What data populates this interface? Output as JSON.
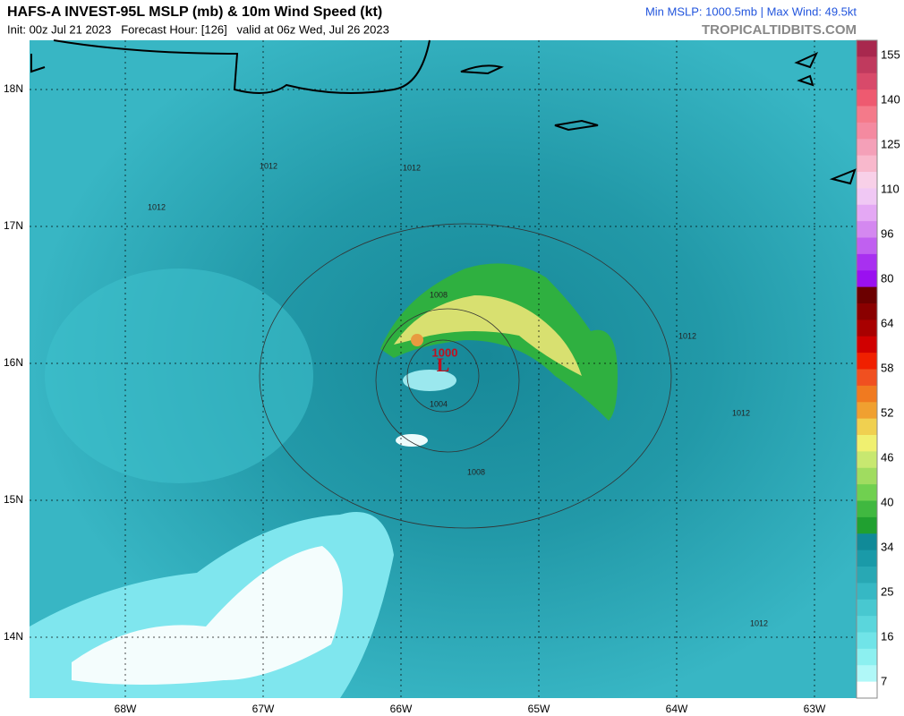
{
  "header": {
    "title": "HAFS-A INVEST-95L MSLP (mb) & 10m Wind Speed (kt)",
    "subtitle": "Init: 00z Jul 21 2023   Forecast Hour: [126]   valid at 06z Wed, Jul 26 2023",
    "stats": "Min MSLP: 1000.5mb | Max Wind: 49.5kt",
    "source": "TROPICALTIDBITS.COM"
  },
  "map": {
    "lat_labels": [
      "18N",
      "17N",
      "16N",
      "15N",
      "14N"
    ],
    "lon_labels": [
      "68W",
      "67W",
      "66W",
      "65W",
      "64W",
      "63W"
    ],
    "low": {
      "symbol": "L",
      "pressure": "1000"
    },
    "contour_labels": [
      "1012",
      "1012",
      "1012",
      "1008",
      "1004",
      "1008",
      "1012",
      "1012",
      "1012"
    ]
  },
  "colorbar": {
    "labels": [
      "155",
      "140",
      "125",
      "110",
      "96",
      "80",
      "64",
      "58",
      "52",
      "46",
      "40",
      "34",
      "25",
      "16",
      "7"
    ]
  }
}
